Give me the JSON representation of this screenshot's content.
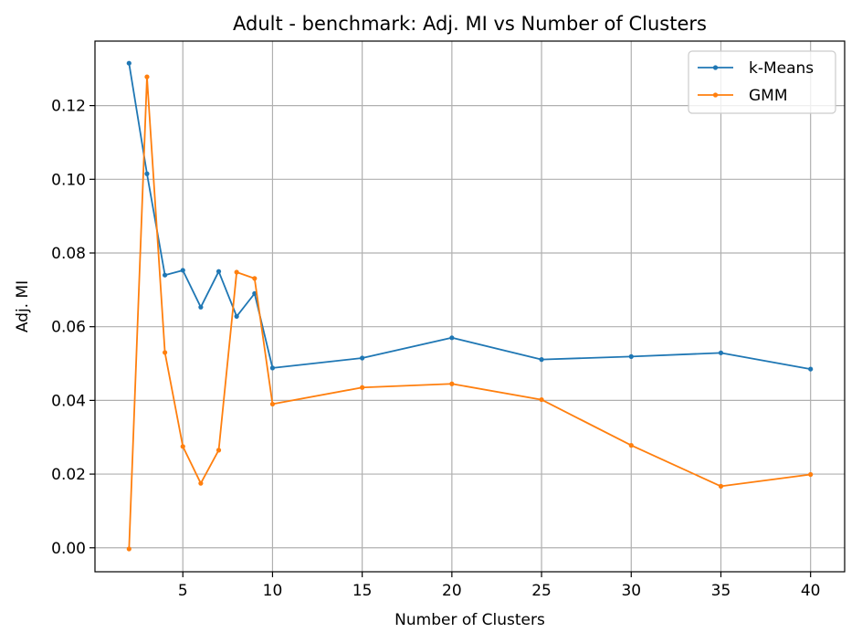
{
  "chart_data": {
    "type": "line",
    "title": "Adult - benchmark: Adj. MI vs Number of Clusters",
    "xlabel": "Number of Clusters",
    "ylabel": "Adj. MI",
    "xlim": [
      0.1,
      41.9
    ],
    "ylim": [
      -0.0065,
      0.1375
    ],
    "xticks": [
      5,
      10,
      15,
      20,
      25,
      30,
      35,
      40
    ],
    "xtick_labels": [
      "5",
      "10",
      "15",
      "20",
      "25",
      "30",
      "35",
      "40"
    ],
    "yticks": [
      0.0,
      0.02,
      0.04,
      0.06,
      0.08,
      0.1,
      0.12
    ],
    "ytick_labels": [
      "0.00",
      "0.02",
      "0.04",
      "0.06",
      "0.08",
      "0.10",
      "0.12"
    ],
    "grid": true,
    "legend_position": "top-right",
    "x": [
      2,
      3,
      4,
      5,
      6,
      7,
      8,
      9,
      10,
      15,
      20,
      25,
      30,
      35,
      40
    ],
    "series": [
      {
        "name": "k-Means",
        "color": "#1f77b4",
        "values": [
          0.1315,
          0.1015,
          0.074,
          0.0753,
          0.0653,
          0.075,
          0.0628,
          0.069,
          0.0488,
          0.0515,
          0.057,
          0.0511,
          0.0519,
          0.0529,
          0.0485
        ]
      },
      {
        "name": "GMM",
        "color": "#ff7f0e",
        "values": [
          -0.0003,
          0.1278,
          0.053,
          0.0275,
          0.0175,
          0.0265,
          0.0748,
          0.0731,
          0.039,
          0.0435,
          0.0445,
          0.0402,
          0.0278,
          0.0167,
          0.0199
        ]
      }
    ]
  }
}
